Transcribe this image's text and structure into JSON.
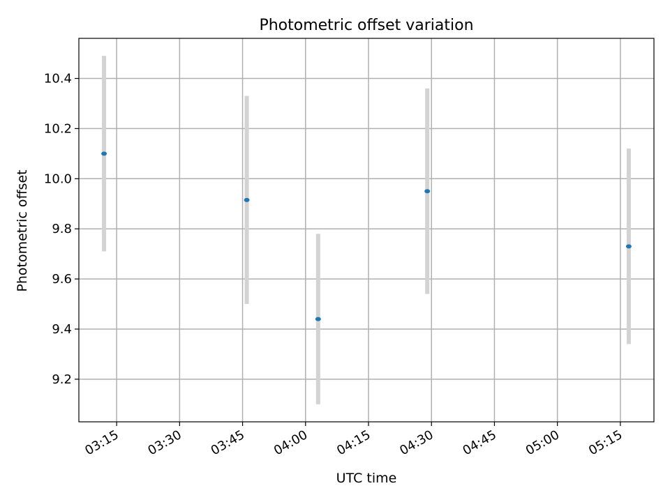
{
  "chart_data": {
    "type": "scatter",
    "title": "Photometric offset variation",
    "xlabel": "UTC time",
    "ylabel": "Photometric offset",
    "x_tick_labels": [
      "03:15",
      "03:30",
      "03:45",
      "04:00",
      "04:15",
      "04:30",
      "04:45",
      "05:00",
      "05:15"
    ],
    "x_ticks": [
      "03:15",
      "03:30",
      "03:45",
      "04:00",
      "04:15",
      "04:30",
      "04:45",
      "05:00",
      "05:15"
    ],
    "xlim": [
      "03:06",
      "05:23"
    ],
    "y_tick_labels": [
      "9.2",
      "9.4",
      "9.6",
      "9.8",
      "10.0",
      "10.2",
      "10.4"
    ],
    "y_ticks": [
      9.2,
      9.4,
      9.6,
      9.8,
      10.0,
      10.2,
      10.4
    ],
    "ylim": [
      9.03,
      10.56
    ],
    "grid": true,
    "series": [
      {
        "points": [
          {
            "x": "03:12",
            "y": 10.1,
            "err_low": 9.71,
            "err_high": 10.49
          },
          {
            "x": "03:46",
            "y": 9.915,
            "err_low": 9.5,
            "err_high": 10.33
          },
          {
            "x": "04:03",
            "y": 9.44,
            "err_low": 9.1,
            "err_high": 9.78
          },
          {
            "x": "04:29",
            "y": 9.95,
            "err_low": 9.54,
            "err_high": 10.36
          },
          {
            "x": "05:17",
            "y": 9.73,
            "err_low": 9.34,
            "err_high": 10.12
          }
        ]
      }
    ],
    "colors": {
      "marker": "#1f77b4",
      "errorbar": "#d3d3d3",
      "grid": "#b0b0b0",
      "axes": "#000000"
    }
  }
}
